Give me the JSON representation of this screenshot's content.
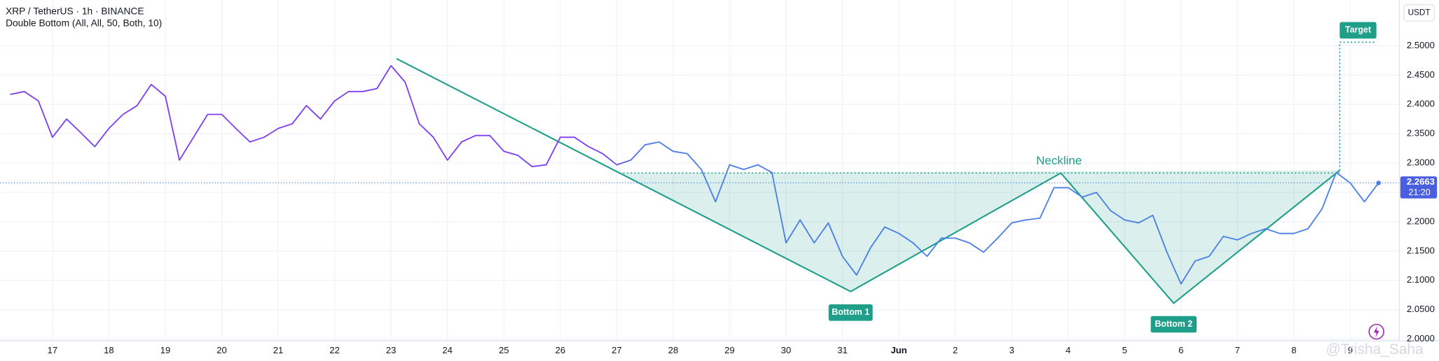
{
  "chart_data": {
    "type": "line",
    "title": "XRP / TetherUS · 1h · BINANCE",
    "subtitle": "Double Bottom (All, All, 50, Both, 10)",
    "y_unit": "USDT",
    "categories": [
      null,
      null,
      null,
      "17",
      null,
      null,
      null,
      "18",
      null,
      null,
      null,
      "19",
      null,
      null,
      null,
      "20",
      null,
      null,
      null,
      "21",
      null,
      null,
      null,
      "22",
      null,
      null,
      null,
      "23",
      null,
      null,
      null,
      "24",
      null,
      null,
      null,
      "25",
      null,
      null,
      null,
      "26",
      null,
      null,
      null,
      "27",
      null,
      null,
      null,
      "28",
      null,
      null,
      null,
      "29",
      null,
      null,
      null,
      "30",
      null,
      null,
      null,
      "31",
      null,
      null,
      null,
      "Jun",
      null,
      null,
      null,
      "2",
      null,
      null,
      null,
      "3",
      null,
      null,
      null,
      "4",
      null,
      null,
      null,
      "5",
      null,
      null,
      null,
      "6",
      null,
      null,
      null,
      "7",
      null,
      null,
      null,
      "8",
      null,
      null,
      null,
      "9",
      null,
      null
    ],
    "series": [
      {
        "colors": [
          "#7e3ff2",
          "#4a7fe8"
        ],
        "values": [
          2.417,
          2.422,
          2.406,
          2.344,
          2.375,
          2.352,
          2.328,
          2.359,
          2.383,
          2.398,
          2.434,
          2.414,
          2.305,
          2.344,
          2.383,
          2.383,
          2.359,
          2.336,
          2.344,
          2.359,
          2.367,
          2.398,
          2.375,
          2.406,
          2.422,
          2.422,
          2.427,
          2.466,
          2.438,
          2.367,
          2.344,
          2.305,
          2.336,
          2.347,
          2.347,
          2.32,
          2.313,
          2.294,
          2.297,
          2.344,
          2.344,
          2.328,
          2.316,
          2.297,
          2.305,
          2.331,
          2.336,
          2.32,
          2.316,
          2.289,
          2.234,
          2.297,
          2.289,
          2.297,
          2.284,
          2.164,
          2.203,
          2.164,
          2.198,
          2.141,
          2.109,
          2.156,
          2.191,
          2.18,
          2.164,
          2.141,
          2.172,
          2.172,
          2.164,
          2.148,
          2.172,
          2.198,
          2.203,
          2.206,
          2.258,
          2.258,
          2.242,
          2.25,
          2.219,
          2.203,
          2.198,
          2.211,
          2.148,
          2.094,
          2.133,
          2.141,
          2.175,
          2.169,
          2.18,
          2.188,
          2.18,
          2.18,
          2.188,
          2.222,
          2.284,
          2.266,
          2.234,
          2.266
        ]
      }
    ],
    "ylim": [
      1.9969,
      2.578
    ],
    "yticks": [
      {
        "value": 2.0,
        "label": "2.0000"
      },
      {
        "value": 2.05,
        "label": "2.0500"
      },
      {
        "value": 2.1,
        "label": "2.1000"
      },
      {
        "value": 2.15,
        "label": "2.1500"
      },
      {
        "value": 2.2,
        "label": "2.2000"
      },
      {
        "value": 2.25,
        "label": "2.2500"
      },
      {
        "value": 2.3,
        "label": "2.3000"
      },
      {
        "value": 2.35,
        "label": "2.3500"
      },
      {
        "value": 2.4,
        "label": "2.4000"
      },
      {
        "value": 2.45,
        "label": "2.4500"
      },
      {
        "value": 2.5,
        "label": "2.5000"
      }
    ],
    "grid": true,
    "last_price": 2.2663,
    "countdown": "21:20",
    "pattern": {
      "color": "#1f9e89",
      "x": [
        27.39,
        59.58,
        74.48,
        82.48,
        94.25
      ],
      "values": [
        2.478,
        2.081,
        2.283,
        2.061,
        2.2875
      ],
      "neckline": 2.283,
      "target": 2.506,
      "target_x": 96.85,
      "bottom1_label": "Bottom 1",
      "bottom2_label": "Bottom 2",
      "neckline_label": "Neckline",
      "target_label": "Target"
    },
    "watermark": "@Trisha_Saha"
  }
}
